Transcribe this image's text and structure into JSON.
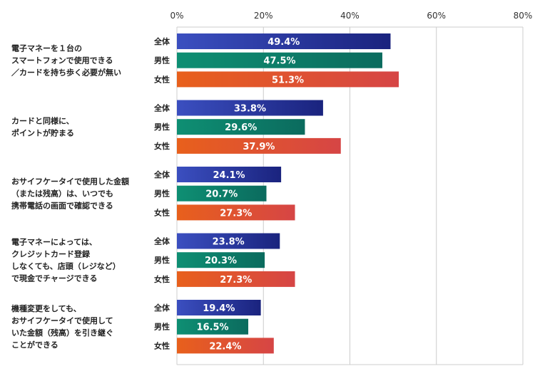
{
  "chart_data": {
    "type": "bar",
    "orientation": "horizontal",
    "x_ticks": [
      "0%",
      "20%",
      "40%",
      "60%",
      "80%"
    ],
    "xlim": [
      0,
      80
    ],
    "grid": true,
    "series_names": [
      "全体",
      "男性",
      "女性"
    ],
    "colors": {
      "全体": [
        "#3b4fc0",
        "#1a237e"
      ],
      "男性": [
        "#0e8f73",
        "#0b6b5e"
      ],
      "女性": [
        "#e8601c",
        "#d64545"
      ]
    },
    "groups": [
      {
        "label": [
          "電子マネーを１台の",
          "スマートフォンで使用できる",
          "／カードを持ち歩く必要が無い"
        ],
        "values": [
          49.4,
          47.5,
          51.3
        ],
        "value_labels": [
          "49.4%",
          "47.5%",
          "51.3%"
        ]
      },
      {
        "label": [
          "カードと同様に、",
          "ポイントが貯まる"
        ],
        "values": [
          33.8,
          29.6,
          37.9
        ],
        "value_labels": [
          "33.8%",
          "29.6%",
          "37.9%"
        ]
      },
      {
        "label": [
          "おサイフケータイで使用した金額",
          "（または残高）は、いつでも",
          "携帯電話の画面で確認できる"
        ],
        "values": [
          24.1,
          20.7,
          27.3
        ],
        "value_labels": [
          "24.1%",
          "20.7%",
          "27.3%"
        ]
      },
      {
        "label": [
          "電子マネーによっては、",
          "クレジットカード登録",
          "しなくても、店頭（レジなど）",
          "で現金でチャージできる"
        ],
        "values": [
          23.8,
          20.3,
          27.3
        ],
        "value_labels": [
          "23.8%",
          "20.3%",
          "27.3%"
        ]
      },
      {
        "label": [
          "機種変更をしても、",
          "おサイフケータイで使用して",
          "いた金額（残高）を引き継ぐ",
          "ことができる"
        ],
        "values": [
          19.4,
          16.5,
          22.4
        ],
        "value_labels": [
          "19.4%",
          "16.5%",
          "22.4%"
        ]
      }
    ]
  }
}
